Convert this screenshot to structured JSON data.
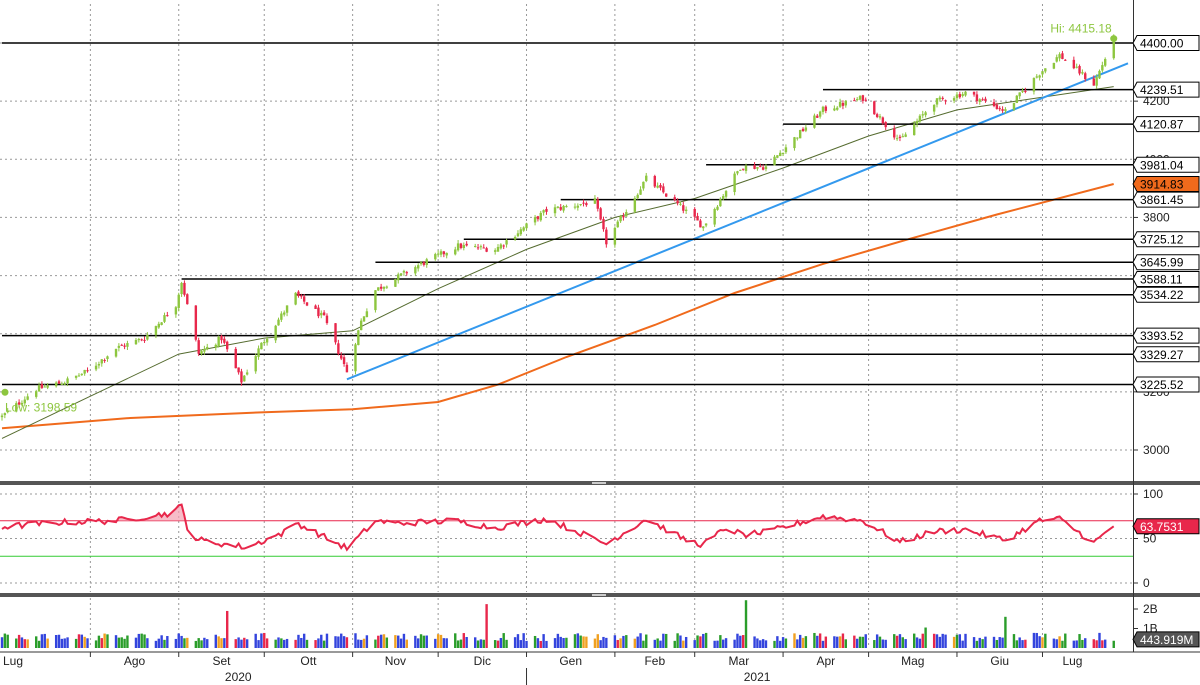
{
  "colors": {
    "up": "#8dc63f",
    "down": "#e8274b",
    "ma_short": "#556b2f",
    "ma_long": "#f06a1c",
    "trendline": "#3399ee",
    "rsi": "#e8274b",
    "rsi_upper": "#e8274b",
    "rsi_lower": "#33cc33",
    "level_line": "#000000",
    "grid": "#999999",
    "hi_low_label": "#8dc63f",
    "vol_blue": "#3344dd",
    "vol_orange": "#f0a020"
  },
  "chart_data": [
    {
      "type": "candlestick",
      "title": "",
      "x_range": [
        "2020-07-01",
        "2021-07-31"
      ],
      "x_months": [
        {
          "date": "2020-07-01",
          "label": "Lug"
        },
        {
          "date": "2020-08-01",
          "label": "Ago"
        },
        {
          "date": "2020-09-01",
          "label": "Set"
        },
        {
          "date": "2020-10-01",
          "label": "Ott"
        },
        {
          "date": "2020-11-01",
          "label": "Nov"
        },
        {
          "date": "2020-12-01",
          "label": "Dic"
        },
        {
          "date": "2021-01-01",
          "label": "Gen"
        },
        {
          "date": "2021-02-01",
          "label": "Feb"
        },
        {
          "date": "2021-03-01",
          "label": "Mar"
        },
        {
          "date": "2021-04-01",
          "label": "Apr"
        },
        {
          "date": "2021-05-01",
          "label": "Mag"
        },
        {
          "date": "2021-06-01",
          "label": "Giu"
        },
        {
          "date": "2021-07-01",
          "label": "Lug"
        }
      ],
      "x_years": [
        {
          "date": "2020-10-01",
          "label": "2020"
        },
        {
          "date": "2021-04-01",
          "label": "2021"
        }
      ],
      "ylim": [
        2930,
        4470
      ],
      "y_ticks": [
        3000,
        3200,
        3400,
        3600,
        3800,
        4000,
        4200,
        4400
      ],
      "grid": true,
      "close_path": [
        [
          "2020-07-01",
          3115
        ],
        [
          "2020-07-13",
          3210
        ],
        [
          "2020-07-23",
          3235
        ],
        [
          "2020-07-31",
          3271
        ],
        [
          "2020-08-10",
          3350
        ],
        [
          "2020-08-20",
          3385
        ],
        [
          "2020-08-31",
          3500
        ],
        [
          "2020-09-02",
          3580
        ],
        [
          "2020-09-08",
          3332
        ],
        [
          "2020-09-16",
          3385
        ],
        [
          "2020-09-23",
          3237
        ],
        [
          "2020-09-30",
          3363
        ],
        [
          "2020-10-12",
          3534
        ],
        [
          "2020-10-22",
          3453
        ],
        [
          "2020-10-30",
          3270
        ],
        [
          "2020-11-04",
          3443
        ],
        [
          "2020-11-09",
          3550
        ],
        [
          "2020-11-24",
          3635
        ],
        [
          "2020-12-08",
          3702
        ],
        [
          "2020-12-21",
          3690
        ],
        [
          "2021-01-08",
          3824
        ],
        [
          "2021-01-25",
          3855
        ],
        [
          "2021-01-29",
          3714
        ],
        [
          "2021-02-12",
          3934
        ],
        [
          "2021-02-25",
          3829
        ],
        [
          "2021-03-04",
          3768
        ],
        [
          "2021-03-17",
          3974
        ],
        [
          "2021-03-26",
          3974
        ],
        [
          "2021-04-15",
          4170
        ],
        [
          "2021-04-29",
          4211
        ],
        [
          "2021-05-12",
          4063
        ],
        [
          "2021-05-24",
          4197
        ],
        [
          "2021-06-04",
          4229
        ],
        [
          "2021-06-18",
          4166
        ],
        [
          "2021-06-30",
          4297
        ],
        [
          "2021-07-07",
          4358
        ],
        [
          "2021-07-19",
          4258
        ],
        [
          "2021-07-26",
          4415
        ]
      ],
      "hi": {
        "date": "2021-07-26",
        "value": 4415.18,
        "label": "Hi: 4415.18"
      },
      "low": {
        "date": "2020-07-01",
        "value": 3198.59,
        "label": "Low: 3198.59"
      },
      "levels": [
        {
          "value": 4400.0,
          "label": "4400.00",
          "from": "2020-07-01"
        },
        {
          "value": 4239.51,
          "label": "4239.51",
          "from": "2021-04-15"
        },
        {
          "value": 4120.87,
          "label": "4120.87",
          "from": "2021-04-01"
        },
        {
          "value": 3981.04,
          "label": "3981.04",
          "from": "2021-03-05"
        },
        {
          "value": 3861.45,
          "label": "3861.45",
          "from": "2021-01-13"
        },
        {
          "value": 3725.12,
          "label": "3725.12",
          "from": "2020-12-10"
        },
        {
          "value": 3645.99,
          "label": "3645.99",
          "from": "2020-11-09"
        },
        {
          "value": 3588.11,
          "label": "3588.11",
          "from": "2020-09-02"
        },
        {
          "value": 3534.22,
          "label": "3534.22",
          "from": "2020-10-12"
        },
        {
          "value": 3393.52,
          "label": "3393.52",
          "from": "2020-07-01"
        },
        {
          "value": 3329.27,
          "label": "3329.27",
          "from": "2020-09-08"
        },
        {
          "value": 3225.52,
          "label": "3225.52",
          "from": "2020-07-01"
        }
      ],
      "moving_average_200": {
        "label": "3914.83",
        "points": [
          [
            "2020-07-01",
            3075
          ],
          [
            "2020-08-15",
            3110
          ],
          [
            "2020-10-01",
            3130
          ],
          [
            "2020-11-01",
            3140
          ],
          [
            "2020-12-01",
            3165
          ],
          [
            "2020-12-22",
            3225
          ],
          [
            "2021-01-15",
            3320
          ],
          [
            "2021-02-15",
            3430
          ],
          [
            "2021-03-15",
            3540
          ],
          [
            "2021-04-15",
            3640
          ],
          [
            "2021-05-15",
            3725
          ],
          [
            "2021-06-15",
            3810
          ],
          [
            "2021-07-26",
            3914.83
          ]
        ]
      },
      "moving_average_50": {
        "points": [
          [
            "2020-07-01",
            3040
          ],
          [
            "2020-08-01",
            3185
          ],
          [
            "2020-09-01",
            3330
          ],
          [
            "2020-10-01",
            3385
          ],
          [
            "2020-11-01",
            3410
          ],
          [
            "2020-12-01",
            3555
          ],
          [
            "2021-01-01",
            3690
          ],
          [
            "2021-02-01",
            3800
          ],
          [
            "2021-03-01",
            3865
          ],
          [
            "2021-04-01",
            3970
          ],
          [
            "2021-05-01",
            4080
          ],
          [
            "2021-06-01",
            4170
          ],
          [
            "2021-07-26",
            4250
          ]
        ]
      },
      "trendline": {
        "from": [
          "2020-10-30",
          3243
        ],
        "to": [
          "2021-07-31",
          4330
        ]
      }
    },
    {
      "type": "line",
      "title": "",
      "series": [
        {
          "name": "",
          "last": 63.7531,
          "last_label": "63.7531"
        }
      ],
      "ylim": [
        -5,
        107
      ],
      "y_ticks": [
        0,
        50,
        100
      ],
      "upper_band": 70,
      "lower_band": 30,
      "path": [
        [
          "2020-07-01",
          63
        ],
        [
          "2020-07-20",
          68
        ],
        [
          "2020-08-10",
          70
        ],
        [
          "2020-08-28",
          78
        ],
        [
          "2020-09-02",
          86
        ],
        [
          "2020-09-05",
          52
        ],
        [
          "2020-09-10",
          47
        ],
        [
          "2020-09-25",
          40
        ],
        [
          "2020-10-08",
          57
        ],
        [
          "2020-10-12",
          68
        ],
        [
          "2020-10-30",
          39
        ],
        [
          "2020-11-09",
          70
        ],
        [
          "2020-11-16",
          67
        ],
        [
          "2020-12-07",
          70
        ],
        [
          "2020-12-21",
          62
        ],
        [
          "2021-01-08",
          72
        ],
        [
          "2021-01-29",
          44
        ],
        [
          "2021-02-12",
          72
        ],
        [
          "2021-02-26",
          48
        ],
        [
          "2021-03-04",
          43
        ],
        [
          "2021-03-12",
          62
        ],
        [
          "2021-03-18",
          54
        ],
        [
          "2021-03-26",
          57
        ],
        [
          "2021-04-15",
          75
        ],
        [
          "2021-04-29",
          70
        ],
        [
          "2021-05-12",
          46
        ],
        [
          "2021-05-24",
          58
        ],
        [
          "2021-06-04",
          60
        ],
        [
          "2021-06-18",
          48
        ],
        [
          "2021-06-30",
          70
        ],
        [
          "2021-07-07",
          72
        ],
        [
          "2021-07-19",
          45
        ],
        [
          "2021-07-26",
          63.7531
        ]
      ]
    },
    {
      "type": "bar",
      "title": "",
      "series": [
        {
          "name": "",
          "last": 443919000,
          "last_label": "443.919M"
        }
      ],
      "ylim": [
        0,
        2600000000
      ],
      "y_ticks": [
        {
          "value": 1000000000,
          "label": "1B"
        },
        {
          "value": 2000000000,
          "label": "2B"
        }
      ],
      "notable": [
        {
          "date": "2020-09-18",
          "value": 1900000000
        },
        {
          "date": "2020-12-18",
          "value": 2250000000
        },
        {
          "date": "2021-03-19",
          "value": 2450000000
        },
        {
          "date": "2021-06-18",
          "value": 1600000000
        },
        {
          "date": "2021-05-21",
          "value": 1050000000
        }
      ],
      "typical_value": 600000000
    }
  ]
}
